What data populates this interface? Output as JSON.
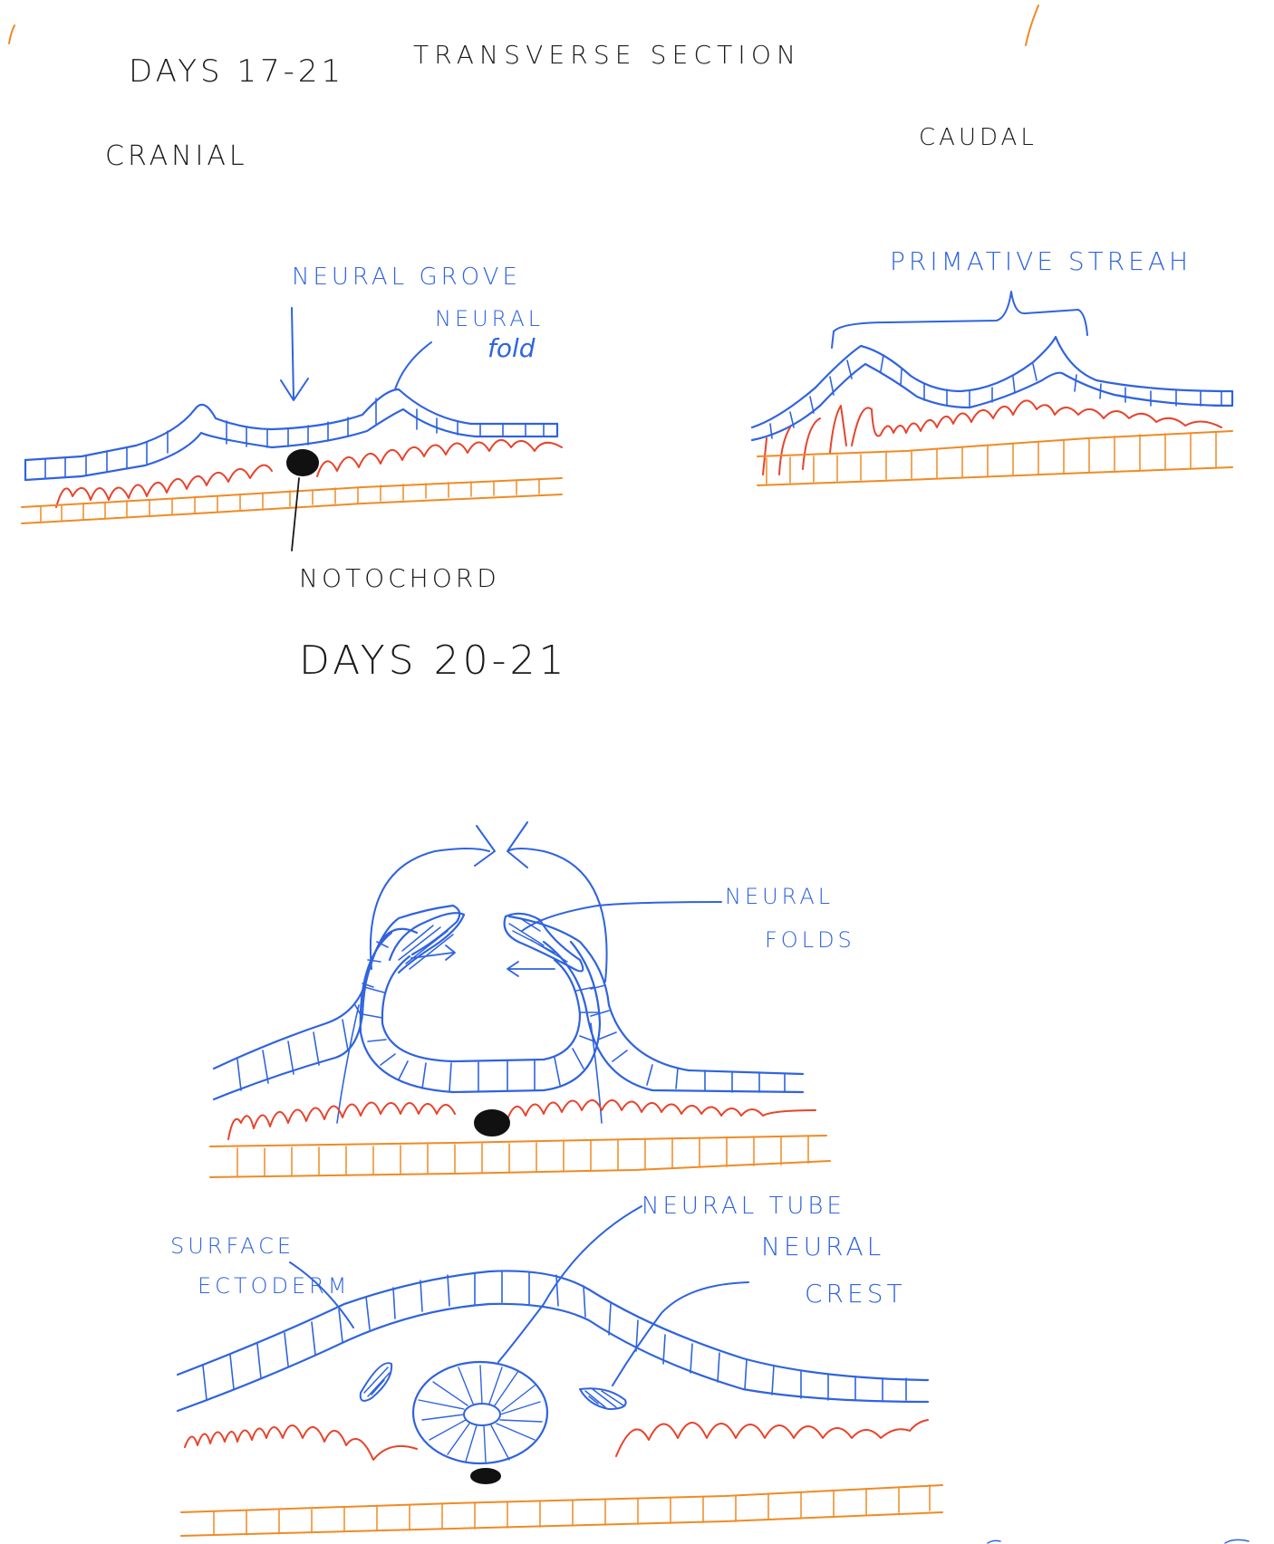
{
  "colors": {
    "ectoderm": "#2f63e0",
    "mesoderm": "#e8432b",
    "endoderm": "#f08a24",
    "notochord": "#111111",
    "ink": "#1a1a1a"
  },
  "header": {
    "days_top": "DAYS 17-21",
    "title": "TRANSVERSE SECTION",
    "cranial": "CRANIAL",
    "caudal": "CAUDAL"
  },
  "labels": {
    "neural_groove": "NEURAL GROVE",
    "neural_fold_line1": "NEURAL",
    "neural_fold_line2": "fold",
    "notochord": "NOTOCHORD",
    "primitive_streak": "PRIMATIVE STREAH",
    "days_mid": "DAYS 20-21",
    "neural_folds_line1": "NEURAL",
    "neural_folds_line2": "FOLDS",
    "surface_ectoderm_line1": "SURFACE",
    "surface_ectoderm_line2": "ECTODERM",
    "neural_tube": "NEURAL TUBE",
    "neural_crest_line1": "NEURAL",
    "neural_crest_line2": "CREST"
  }
}
